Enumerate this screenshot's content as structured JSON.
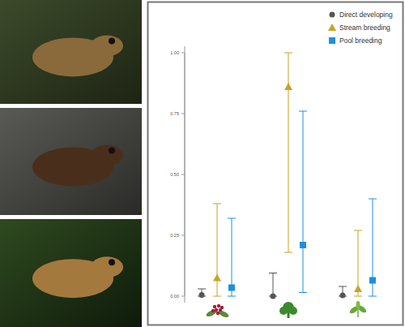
{
  "chart_data": {
    "type": "scatter",
    "categories": [
      null,
      null,
      null
    ],
    "ylim": [
      0,
      1
    ],
    "yticks": [
      {
        "value": 0,
        "label": "0.00"
      },
      {
        "value": 0.25,
        "label": "0.25"
      },
      {
        "value": 0.5,
        "label": "0.50"
      },
      {
        "value": 0.75,
        "label": "0.75"
      },
      {
        "value": 1,
        "label": "1.00"
      }
    ],
    "grid": false,
    "legend": "top-right",
    "series": [
      {
        "name": "Direct developing",
        "color": "#555555",
        "marker": "circle",
        "values": [
          0.005,
          0.0,
          0.003
        ],
        "lower": [
          0.0,
          0.0,
          0.0
        ],
        "upper": [
          0.03,
          0.095,
          0.04
        ]
      },
      {
        "name": "Stream breeding",
        "color": "#c9a227",
        "marker": "triangle",
        "values": [
          0.075,
          0.86,
          0.03
        ],
        "lower": [
          0.0,
          0.18,
          0.0
        ],
        "upper": [
          0.38,
          1.0,
          0.27
        ]
      },
      {
        "name": "Pool breeding",
        "color": "#1e8fe0",
        "marker": "square",
        "values": [
          0.035,
          0.21,
          0.065
        ],
        "lower": [
          0.0,
          0.015,
          0.0
        ],
        "upper": [
          0.32,
          0.76,
          0.4
        ]
      }
    ]
  }
}
